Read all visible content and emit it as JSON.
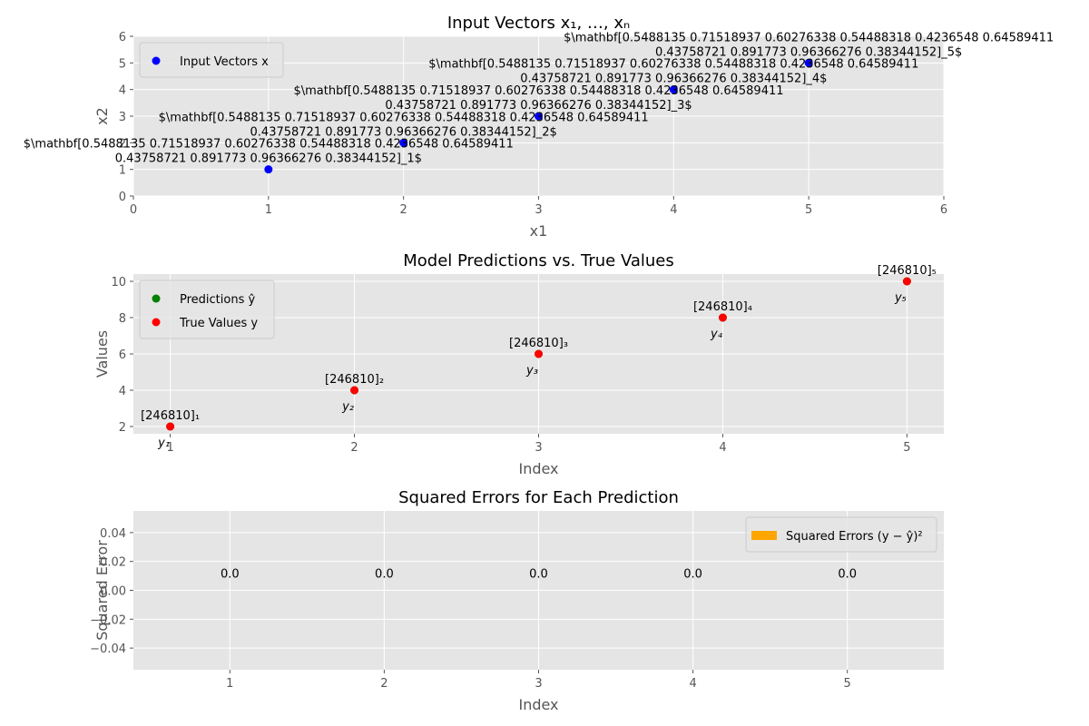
{
  "chart_data": [
    {
      "type": "scatter",
      "title": "Input Vectors x₁, …, xₙ",
      "xlabel": "x1",
      "ylabel": "x2",
      "xlim": [
        0,
        6
      ],
      "ylim": [
        0,
        6
      ],
      "xticks": [
        "0",
        "1",
        "2",
        "3",
        "4",
        "5",
        "6"
      ],
      "yticks": [
        "0",
        "1",
        "2",
        "3",
        "4",
        "5",
        "6"
      ],
      "grid": true,
      "legend": {
        "position": "top-left",
        "entries": [
          {
            "label": "Input Vectors x",
            "color": "#0000ff"
          }
        ]
      },
      "series": [
        {
          "name": "Input Vectors x",
          "color": "#0000ff",
          "x": [
            1,
            2,
            3,
            4,
            5
          ],
          "y": [
            1,
            2,
            3,
            4,
            5
          ]
        }
      ],
      "annotations": [
        {
          "x": 1,
          "y": 1,
          "lines": [
            "$\\mathbf[0.5488135  0.71518937 0.60276338 0.54488318 0.4236548  0.64589411",
            "0.43758721 0.891773   0.96366276 0.38344152]_1$"
          ]
        },
        {
          "x": 2,
          "y": 2,
          "lines": [
            "$\\mathbf[0.5488135  0.71518937 0.60276338 0.54488318 0.4236548  0.64589411",
            "0.43758721 0.891773   0.96366276 0.38344152]_2$"
          ]
        },
        {
          "x": 3,
          "y": 3,
          "lines": [
            "$\\mathbf[0.5488135  0.71518937 0.60276338 0.54488318 0.4236548  0.64589411",
            "0.43758721 0.891773   0.96366276 0.38344152]_3$"
          ]
        },
        {
          "x": 4,
          "y": 4,
          "lines": [
            "$\\mathbf[0.5488135  0.71518937 0.60276338 0.54488318 0.4236548  0.64589411",
            "0.43758721 0.891773   0.96366276 0.38344152]_4$"
          ]
        },
        {
          "x": 5,
          "y": 5,
          "lines": [
            "$\\mathbf[0.5488135  0.71518937 0.60276338 0.54488318 0.4236548  0.64589411",
            "0.43758721 0.891773   0.96366276 0.38344152]_5$"
          ]
        }
      ]
    },
    {
      "type": "scatter",
      "title": "Model Predictions vs. True Values",
      "xlabel": "Index",
      "ylabel": "Values",
      "xlim": [
        0.8,
        5.2
      ],
      "ylim": [
        1.6,
        10.4
      ],
      "xticks": [
        "1",
        "2",
        "3",
        "4",
        "5"
      ],
      "yticks": [
        "2",
        "4",
        "6",
        "8",
        "10"
      ],
      "grid": true,
      "legend": {
        "position": "top-left",
        "entries": [
          {
            "label": "Predictions ŷ",
            "color": "#008000"
          },
          {
            "label": "True Values y",
            "color": "#ff0000"
          }
        ]
      },
      "series": [
        {
          "name": "Predictions ŷ",
          "color": "#008000",
          "x": [
            1,
            2,
            3,
            4,
            5
          ],
          "y": [
            2,
            4,
            6,
            8,
            10
          ]
        },
        {
          "name": "True Values y",
          "color": "#ff0000",
          "x": [
            1,
            2,
            3,
            4,
            5
          ],
          "y": [
            2,
            4,
            6,
            8,
            10
          ]
        }
      ],
      "pred_labels": [
        "[246810]₁",
        "[246810]₂",
        "[246810]₃",
        "[246810]₄",
        "[246810]₅"
      ],
      "true_labels": [
        "y₁",
        "y₂",
        "y₃",
        "y₄",
        "y₅"
      ]
    },
    {
      "type": "bar",
      "title": "Squared Errors for Each Prediction",
      "xlabel": "Index",
      "ylabel": "Squared Error",
      "categories": [
        "1",
        "2",
        "3",
        "4",
        "5"
      ],
      "values": [
        0.0,
        0.0,
        0.0,
        0.0,
        0.0
      ],
      "value_labels": [
        "0.0",
        "0.0",
        "0.0",
        "0.0",
        "0.0"
      ],
      "ylim": [
        -0.055,
        0.055
      ],
      "yticks": [
        "−0.04",
        "−0.02",
        "0.00",
        "0.02",
        "0.04"
      ],
      "grid": true,
      "legend": {
        "position": "top-right",
        "entries": [
          {
            "label": "Squared Errors (y − ŷ)²",
            "color": "#ffa500"
          }
        ]
      }
    }
  ]
}
